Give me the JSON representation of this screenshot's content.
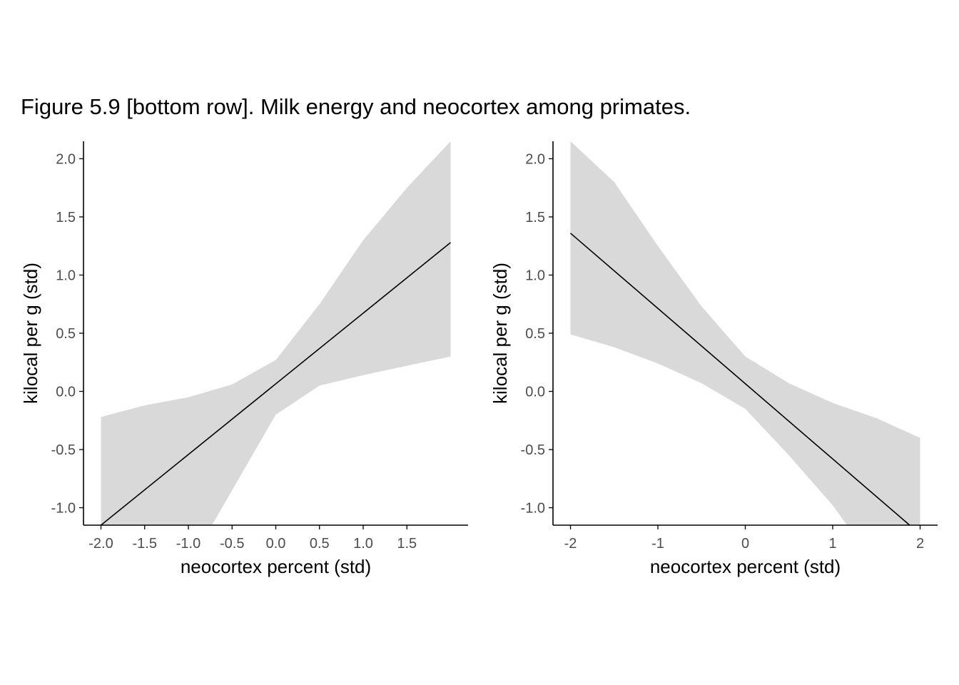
{
  "figure": {
    "title": "Figure 5.9 [bottom row]. Milk energy and neocortex among primates."
  },
  "colors": {
    "ribbon": "#d9d9d9",
    "line": "#000000",
    "axis": "#000000",
    "tick_text": "#4d4d4d"
  },
  "chart_data": [
    {
      "type": "line",
      "xlabel": "neocortex percent (std)",
      "ylabel": "kilocal per g (std)",
      "xlim": [
        -2.2,
        2.2
      ],
      "ylim": [
        -1.15,
        2.15
      ],
      "xticks": [
        -2.0,
        -1.5,
        -1.0,
        -0.5,
        0.0,
        0.5,
        1.0,
        1.5
      ],
      "xtick_labels": [
        "-2.0",
        "-1.5",
        "-1.0",
        "-0.5",
        "0.0",
        "0.5",
        "1.0",
        "1.5"
      ],
      "yticks": [
        -1.0,
        -0.5,
        0.0,
        0.5,
        1.0,
        1.5,
        2.0
      ],
      "ytick_labels": [
        "-1.0",
        "-0.5",
        "0.0",
        "0.5",
        "1.0",
        "1.5",
        "2.0"
      ],
      "line": {
        "x": [
          -2.0,
          2.0
        ],
        "y": [
          -1.15,
          1.28
        ]
      },
      "ribbon": {
        "x": [
          -2.0,
          -1.5,
          -1.0,
          -0.5,
          0.0,
          0.5,
          1.0,
          1.5,
          2.0
        ],
        "lower": [
          -2.5,
          -2.0,
          -1.5,
          -0.85,
          -0.2,
          0.05,
          0.14,
          0.22,
          0.3
        ],
        "upper": [
          -0.22,
          -0.12,
          -0.05,
          0.06,
          0.27,
          0.75,
          1.3,
          1.75,
          2.15
        ]
      },
      "grid": false
    },
    {
      "type": "line",
      "xlabel": "neocortex percent (std)",
      "ylabel": "kilocal per g (std)",
      "xlim": [
        -2.2,
        2.2
      ],
      "ylim": [
        -1.15,
        2.15
      ],
      "xticks": [
        -2,
        -1,
        0,
        1,
        2
      ],
      "xtick_labels": [
        "-2",
        "-1",
        "0",
        "1",
        "2"
      ],
      "yticks": [
        -1.0,
        -0.5,
        0.0,
        0.5,
        1.0,
        1.5,
        2.0
      ],
      "ytick_labels": [
        "-1.0",
        "-0.5",
        "0.0",
        "0.5",
        "1.0",
        "1.5",
        "2.0"
      ],
      "line": {
        "x": [
          -2.0,
          1.88
        ],
        "y": [
          1.36,
          -1.15
        ]
      },
      "ribbon": {
        "x": [
          -2.0,
          -1.5,
          -1.0,
          -0.5,
          0.0,
          0.5,
          1.0,
          1.5,
          2.0
        ],
        "lower": [
          0.49,
          0.38,
          0.24,
          0.07,
          -0.15,
          -0.55,
          -0.98,
          -1.5,
          -2.05
        ],
        "upper": [
          2.15,
          1.8,
          1.25,
          0.73,
          0.3,
          0.07,
          -0.1,
          -0.23,
          -0.4
        ]
      },
      "grid": false
    }
  ]
}
